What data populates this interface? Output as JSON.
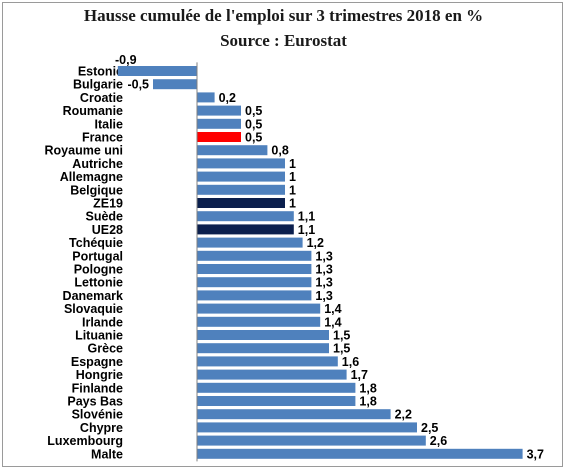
{
  "chart_data": {
    "type": "bar",
    "orientation": "horizontal",
    "title": "Hausse cumulée de l'emploi sur 3 trimestres 2018 en %",
    "subtitle": "Source : Eurostat",
    "categories": [
      "Estonie",
      "Bulgarie",
      "Croatie",
      "Roumanie",
      "Italie",
      "France",
      "Royaume uni",
      "Autriche",
      "Allemagne",
      "Belgique",
      "ZE19",
      "Suède",
      "UE28",
      "Tchéquie",
      "Portugal",
      "Pologne",
      "Lettonie",
      "Danemark",
      "Slovaquie",
      "Irlande",
      "Lituanie",
      "Grèce",
      "Espagne",
      "Hongrie",
      "Finlande",
      "Pays Bas",
      "Slovénie",
      "Chypre",
      "Luxembourg",
      "Malte"
    ],
    "values": [
      -0.9,
      -0.5,
      0.2,
      0.5,
      0.5,
      0.5,
      0.8,
      1,
      1,
      1,
      1,
      1.1,
      1.1,
      1.2,
      1.3,
      1.3,
      1.3,
      1.3,
      1.4,
      1.4,
      1.5,
      1.5,
      1.6,
      1.7,
      1.8,
      1.8,
      2.2,
      2.5,
      2.6,
      3.7
    ],
    "value_labels": [
      "-0,9",
      "-0,5",
      "0,2",
      "0,5",
      "0,5",
      "0,5",
      "0,8",
      "1",
      "1",
      "1",
      "1",
      "1,1",
      "1,1",
      "1,2",
      "1,3",
      "1,3",
      "1,3",
      "1,3",
      "1,4",
      "1,4",
      "1,5",
      "1,5",
      "1,6",
      "1,7",
      "1,8",
      "1,8",
      "2,2",
      "2,5",
      "2,6",
      "3,7"
    ],
    "bar_colors": {
      "default": "#4f81bd",
      "France": "#ff0000",
      "ZE19": "#0b1f4d",
      "UE28": "#0b1f4d"
    },
    "xlim": [
      -0.9,
      3.7
    ],
    "grid": false,
    "legend": "none"
  }
}
